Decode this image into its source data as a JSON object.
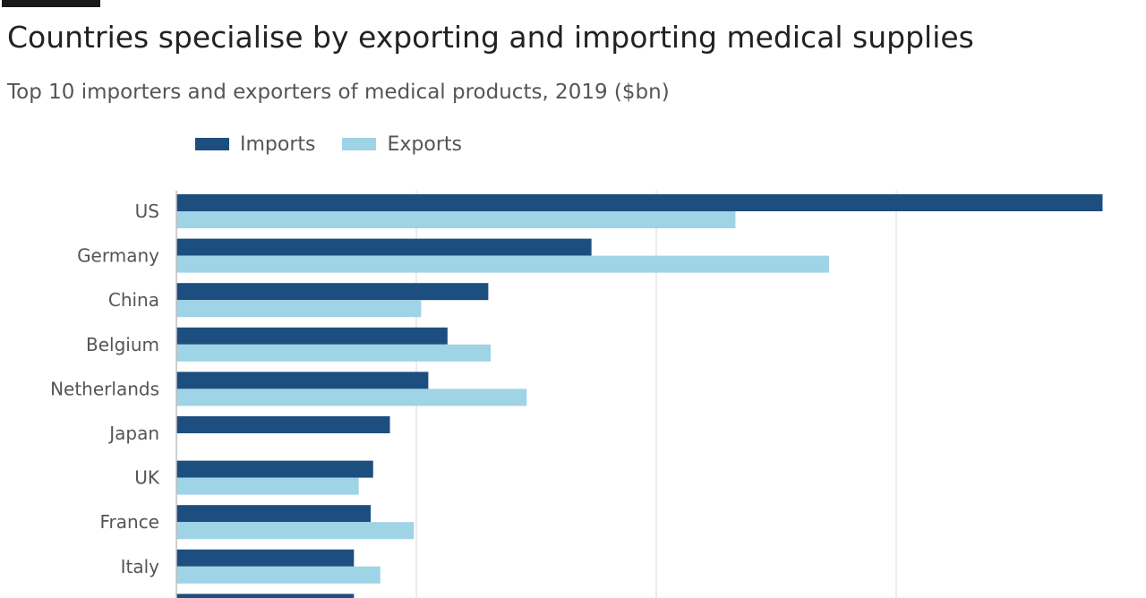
{
  "header": {
    "title": "Countries specialise by exporting and importing medical supplies",
    "subtitle": "Top 10 importers and exporters of medical products, 2019 ($bn)"
  },
  "legend": {
    "imports_label": "Imports",
    "exports_label": "Exports"
  },
  "colors": {
    "imports": "#1d4e80",
    "exports": "#9fd3e6",
    "gridline": "#e0e0e0",
    "axis": "#bfbfbf"
  },
  "chart_data": {
    "type": "bar",
    "orientation": "horizontal",
    "title": "Countries specialise by exporting and importing medical supplies",
    "subtitle": "Top 10 importers and exporters of medical products, 2019 ($bn)",
    "categories": [
      "US",
      "Germany",
      "China",
      "Belgium",
      "Netherlands",
      "Japan",
      "UK",
      "France",
      "Italy",
      ""
    ],
    "series": [
      {
        "name": "Imports",
        "values": [
          193,
          86.5,
          65,
          56.5,
          52.5,
          44.5,
          41,
          40.5,
          37,
          37
        ]
      },
      {
        "name": "Exports",
        "values": [
          116.5,
          136,
          51,
          65.5,
          73,
          0,
          38,
          49.5,
          42.5,
          0
        ]
      }
    ],
    "xlim": [
      0,
      200
    ],
    "grid_values": [
      50,
      100,
      150
    ],
    "grid": true,
    "legend_position": "top-left"
  }
}
